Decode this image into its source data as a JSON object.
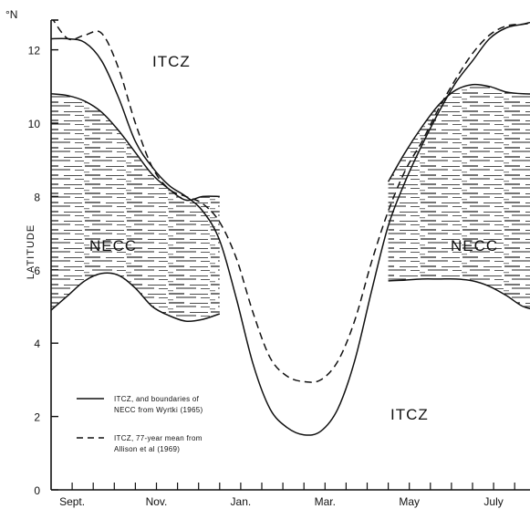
{
  "chart_data": {
    "type": "line",
    "ylabel": "LATITUDE",
    "y_unit_label": "°N",
    "ylim": [
      0,
      13.2
    ],
    "y_ticks": [
      "0",
      "2",
      "4",
      "6",
      "8",
      "10",
      "12"
    ],
    "x_ticks": [
      "Sept.",
      "Nov.",
      "Jan.",
      "Mar.",
      "May",
      "July"
    ],
    "grid": false,
    "annotations": [
      "ITCZ",
      "ITCZ",
      "NECC",
      "NECC"
    ],
    "legend": {
      "placement": "lower-left",
      "entries": [
        {
          "line_1": "ITCZ, and boundaries of",
          "line_2": "NECC from Wyrtki (1965)",
          "style": "solid"
        },
        {
          "line_1": "ITCZ, 77-year mean from",
          "line_2": "Allison et al (1969)",
          "style": "dashed"
        }
      ]
    },
    "series": [
      {
        "style": "solid",
        "x": [
          0.0,
          0.4,
          0.8,
          1.2,
          1.6,
          2.0,
          2.4,
          2.8,
          3.2,
          3.6,
          4.0,
          4.4,
          4.8,
          5.2,
          5.6,
          6.0,
          6.4,
          6.8,
          7.2,
          7.6,
          8.0,
          8.4,
          8.8,
          9.2,
          9.6,
          10.0,
          10.4,
          10.8,
          11.2,
          11.6,
          12.0
        ],
        "y": [
          12.3,
          12.3,
          12.2,
          11.7,
          10.7,
          9.5,
          8.8,
          8.3,
          8.0,
          7.6,
          6.8,
          5.2,
          3.4,
          2.2,
          1.7,
          1.5,
          1.6,
          2.2,
          3.5,
          5.4,
          7.2,
          8.4,
          9.4,
          10.3,
          11.1,
          11.7,
          12.3,
          12.6,
          12.7,
          12.8,
          12.8
        ]
      },
      {
        "style": "dashed",
        "x": [
          0.0,
          0.4,
          0.8,
          1.2,
          1.6,
          2.0,
          2.4,
          2.8,
          3.2,
          3.6,
          4.0,
          4.4,
          4.8,
          5.2,
          5.6,
          6.0,
          6.4,
          6.8,
          7.2,
          7.6,
          8.0,
          8.4,
          8.8,
          9.2,
          9.6,
          10.0,
          10.4,
          10.8,
          11.2,
          11.6,
          12.0
        ],
        "y": [
          12.9,
          12.3,
          12.4,
          12.45,
          11.5,
          10.0,
          8.8,
          8.2,
          8.0,
          7.8,
          7.3,
          6.3,
          4.8,
          3.6,
          3.1,
          2.95,
          3.0,
          3.5,
          4.6,
          6.2,
          7.6,
          8.7,
          9.5,
          10.4,
          11.2,
          11.9,
          12.4,
          12.65,
          12.7,
          12.75,
          12.75
        ]
      },
      {
        "style": "solid",
        "x": [
          0.0,
          0.4,
          0.8,
          1.2,
          1.6,
          2.0,
          2.4,
          2.8,
          3.2,
          3.6,
          4.0
        ],
        "y": [
          10.8,
          10.75,
          10.6,
          10.3,
          9.8,
          9.2,
          8.6,
          8.2,
          7.9,
          8.0,
          8.0
        ]
      },
      {
        "style": "solid",
        "x": [
          0.0,
          0.4,
          0.8,
          1.2,
          1.6,
          2.0,
          2.4,
          2.8,
          3.2,
          3.6,
          4.0
        ],
        "y": [
          4.9,
          5.3,
          5.7,
          5.9,
          5.85,
          5.5,
          5.0,
          4.75,
          4.6,
          4.65,
          4.8
        ]
      },
      {
        "style": "solid",
        "x": [
          8.0,
          8.4,
          8.8,
          9.2,
          9.6,
          10.0,
          10.4,
          10.8,
          11.2,
          11.6,
          12.0
        ],
        "y": [
          8.4,
          9.2,
          9.9,
          10.5,
          10.9,
          11.05,
          11.0,
          10.85,
          10.8,
          10.8,
          10.8
        ]
      },
      {
        "style": "solid",
        "x": [
          8.0,
          8.4,
          8.8,
          9.2,
          9.6,
          10.0,
          10.4,
          10.8,
          11.2,
          11.6,
          12.0
        ],
        "y": [
          5.7,
          5.72,
          5.75,
          5.75,
          5.75,
          5.7,
          5.55,
          5.3,
          5.0,
          4.9,
          4.9
        ]
      }
    ]
  }
}
